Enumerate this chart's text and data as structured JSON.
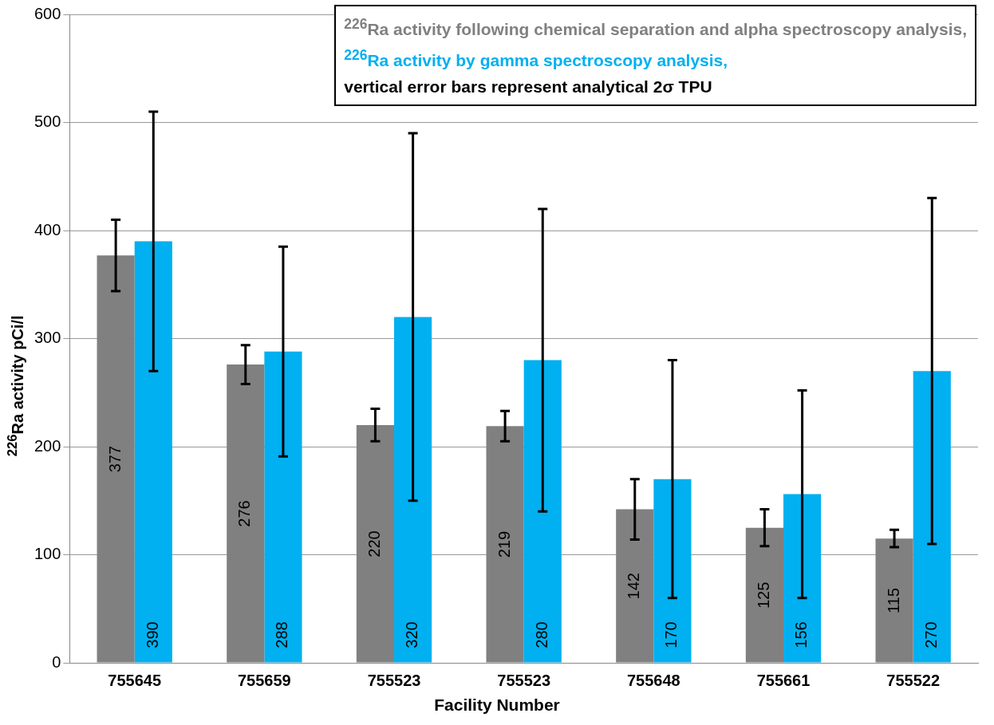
{
  "chart_data": {
    "type": "bar",
    "xlabel": "Facility Number",
    "ylabel": "$^{226}$Ra activity pCi/l",
    "categories": [
      "755645",
      "755659",
      "755523",
      "755523",
      "755648",
      "755661",
      "755522"
    ],
    "series": [
      {
        "name": "$^{226}$Ra activity following chemical separation and alpha spectroscopy analysis,",
        "color": "#808080",
        "values": [
          377,
          276,
          220,
          219,
          142,
          125,
          115
        ],
        "errors": [
          33,
          18,
          15,
          14,
          28,
          17,
          8
        ]
      },
      {
        "name": "$^{226}$Ra activity by gamma spectroscopy analysis,",
        "color": "#00b0f0",
        "values": [
          390,
          288,
          320,
          280,
          170,
          156,
          270
        ],
        "errors": [
          120,
          97,
          170,
          140,
          110,
          96,
          160
        ]
      }
    ],
    "annotations": [
      "vertical error bars represent analytical 2σ TPU"
    ],
    "ylim": [
      0,
      600
    ],
    "yticks": [
      0,
      100,
      200,
      300,
      400,
      500,
      600
    ],
    "grid": "y",
    "legend": "top right",
    "data_labels": true
  }
}
